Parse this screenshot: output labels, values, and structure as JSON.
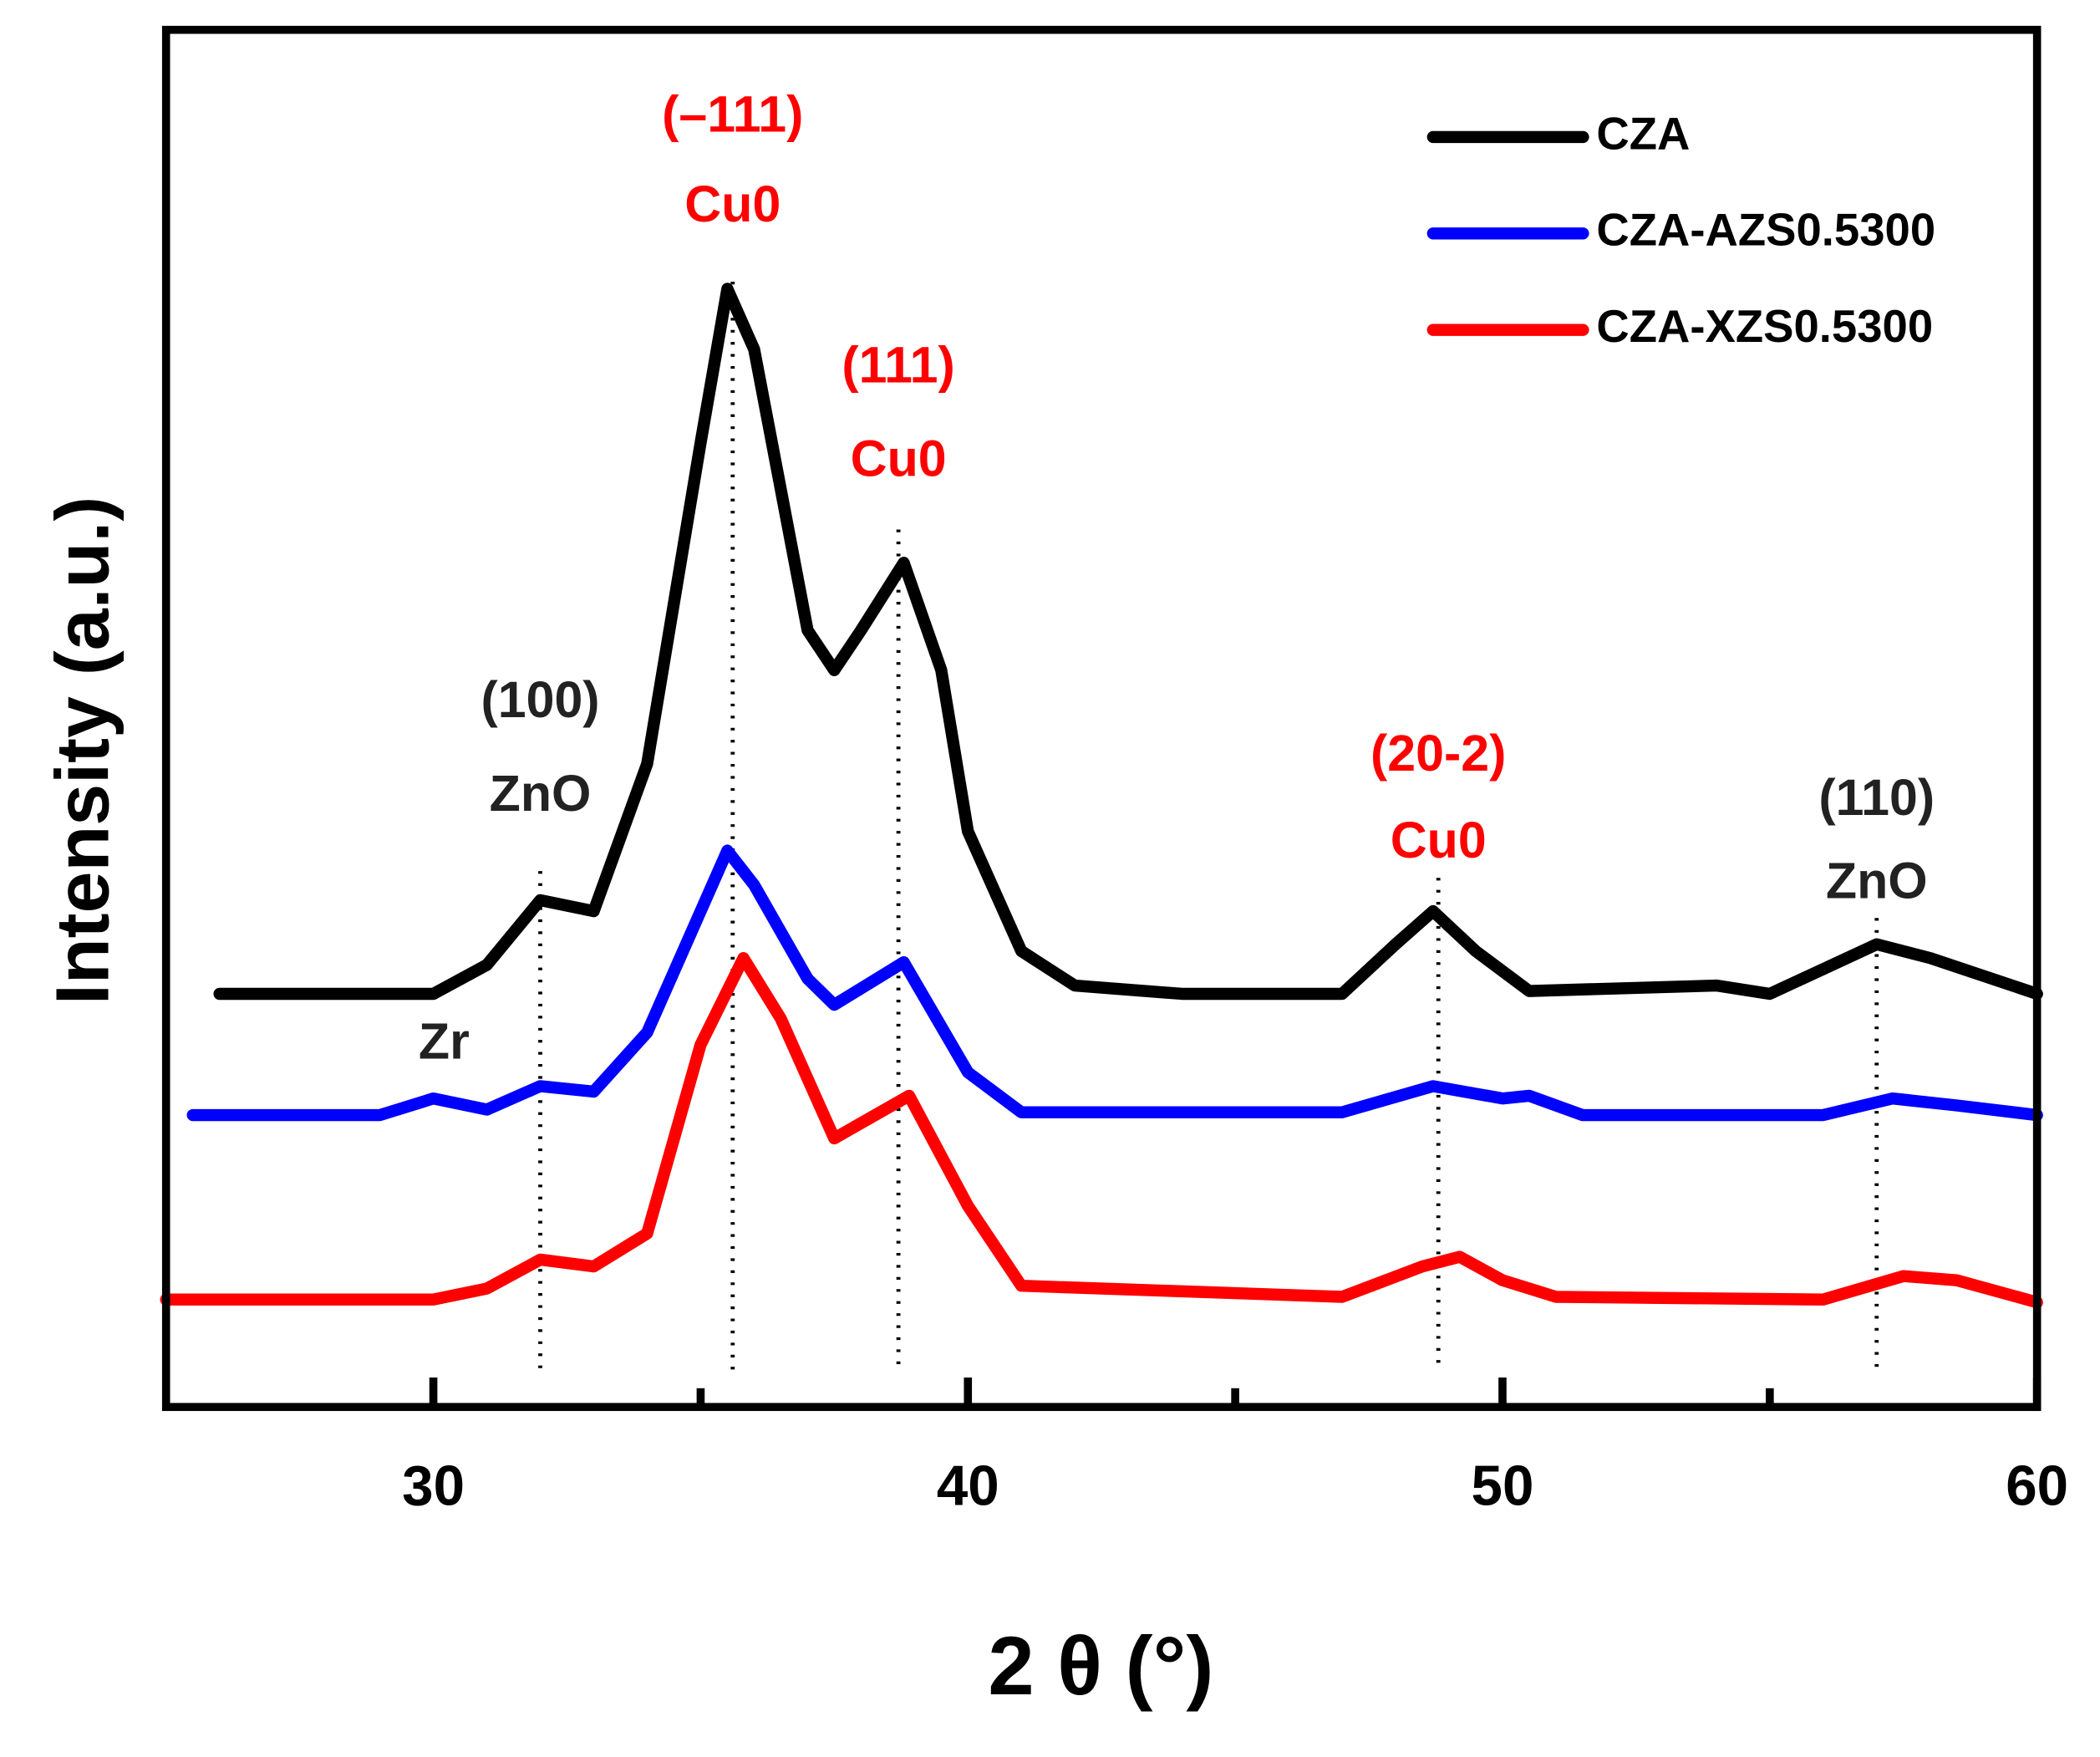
{
  "chart_data": {
    "type": "line",
    "xlabel": "2 θ (°)",
    "ylabel": "Intensity (a.u.)",
    "xlim": [
      25,
      60
    ],
    "xticks": [
      30,
      40,
      50,
      60
    ],
    "xminor_ticks": [
      35,
      45,
      55
    ],
    "ylim": [
      0,
      100
    ],
    "grid": false,
    "legend": "upper right",
    "series": [
      {
        "name": "CZA",
        "color": "#000000",
        "x": [
          26,
          30,
          31,
          32,
          33,
          34,
          35,
          35.5,
          36,
          37,
          37.5,
          38,
          38.8,
          39.5,
          40,
          41,
          42,
          44,
          47,
          48,
          48.7,
          49.5,
          50.5,
          54,
          55,
          57,
          58,
          60
        ],
        "values": [
          30,
          30,
          32.1,
          36.8,
          36,
          46.7,
          70,
          81.2,
          76.8,
          56.4,
          53.5,
          56.4,
          61.3,
          53.5,
          41.8,
          33.1,
          30.6,
          30,
          30,
          33.6,
          36,
          33.1,
          30.2,
          30.6,
          30,
          33.6,
          32.6,
          30
        ]
      },
      {
        "name": "CZA-AZS0.5300",
        "color": "#0000ff",
        "x": [
          25.5,
          29,
          30,
          31,
          32,
          33,
          34,
          35.5,
          36,
          37,
          37.5,
          38.8,
          40,
          41,
          47,
          48.7,
          50,
          50.5,
          51.5,
          56,
          57.3,
          58.5,
          60
        ],
        "values": [
          21.2,
          21.2,
          22.4,
          21.6,
          23.3,
          22.9,
          27.2,
          40.4,
          37.9,
          31.1,
          29.2,
          32.3,
          24.3,
          21.4,
          21.4,
          23.3,
          22.4,
          22.6,
          21.2,
          21.2,
          22.4,
          21.9,
          21.2
        ]
      },
      {
        "name": "CZA-XZS0.5300",
        "color": "#ff0000",
        "x": [
          25,
          30,
          31,
          32,
          33,
          34,
          35,
          35.8,
          36.5,
          37.5,
          38.9,
          40,
          41,
          47,
          48.5,
          49.2,
          50,
          51,
          56,
          57.5,
          58.5,
          60
        ],
        "values": [
          7.8,
          7.8,
          8.6,
          10.7,
          10.2,
          12.6,
          26.3,
          32.6,
          28.2,
          19.5,
          22.6,
          14.6,
          8.8,
          8,
          10.2,
          10.9,
          9.2,
          8,
          7.8,
          9.5,
          9.2,
          7.6
        ]
      }
    ],
    "annotations": [
      {
        "text": [
          "(100)",
          "ZnO"
        ],
        "x": 32,
        "color": "#222222"
      },
      {
        "text": [
          "(–111)",
          "Cu0"
        ],
        "x": 35.6,
        "color": "#ff0000"
      },
      {
        "text": [
          "(111)",
          "Cu0"
        ],
        "x": 38.7,
        "color": "#ff0000"
      },
      {
        "text": [
          "(20-2)",
          "Cu0"
        ],
        "x": 48.8,
        "color": "#ff0000"
      },
      {
        "text": [
          "(110)",
          "ZnO"
        ],
        "x": 57,
        "color": "#222222"
      },
      {
        "text": [
          "Zr"
        ],
        "x": 30.2,
        "color": "#222222"
      }
    ]
  }
}
